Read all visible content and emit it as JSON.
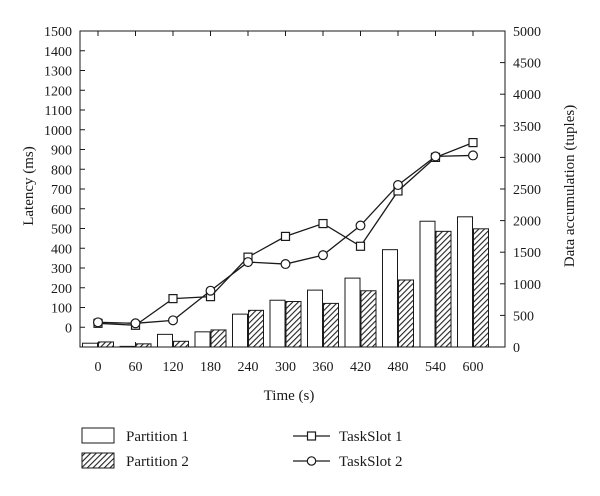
{
  "chart_data": {
    "type": "bar+line",
    "x": [
      "0",
      "60",
      "120",
      "180",
      "240",
      "300",
      "360",
      "420",
      "480",
      "540",
      "600"
    ],
    "xlabel": "Time (s)",
    "ylabel_left": "Latency (ms)",
    "ylabel_right": "Data accumulation (tuples)",
    "ylim_left": [
      -100,
      1500
    ],
    "ylim_right": [
      0,
      5000
    ],
    "yticks_left": [
      "0",
      "100",
      "200",
      "300",
      "400",
      "500",
      "600",
      "700",
      "800",
      "900",
      "1000",
      "1100",
      "1200",
      "1300",
      "1400",
      "1500"
    ],
    "yticks_right": [
      "0",
      "500",
      "1000",
      "1500",
      "2000",
      "2500",
      "3000",
      "3500",
      "4000",
      "4500",
      "5000"
    ],
    "bar_axis": "right",
    "bar_series": [
      {
        "name": "Partition 1",
        "pattern": "open",
        "values": [
          60,
          10,
          200,
          240,
          520,
          740,
          900,
          1090,
          1540,
          1990,
          2060
        ]
      },
      {
        "name": "Partition 2",
        "pattern": "hatched",
        "values": [
          80,
          50,
          90,
          270,
          580,
          720,
          690,
          890,
          1060,
          1830,
          1870
        ]
      }
    ],
    "line_axis": "left",
    "line_series": [
      {
        "name": "TaskSlot 1",
        "marker": "square",
        "values": [
          20,
          10,
          145,
          155,
          355,
          460,
          525,
          410,
          690,
          860,
          935
        ]
      },
      {
        "name": "TaskSlot 2",
        "marker": "circle",
        "values": [
          25,
          20,
          35,
          185,
          330,
          320,
          365,
          515,
          720,
          865,
          870
        ]
      }
    ],
    "legend_position": "bottom",
    "grid": false
  }
}
